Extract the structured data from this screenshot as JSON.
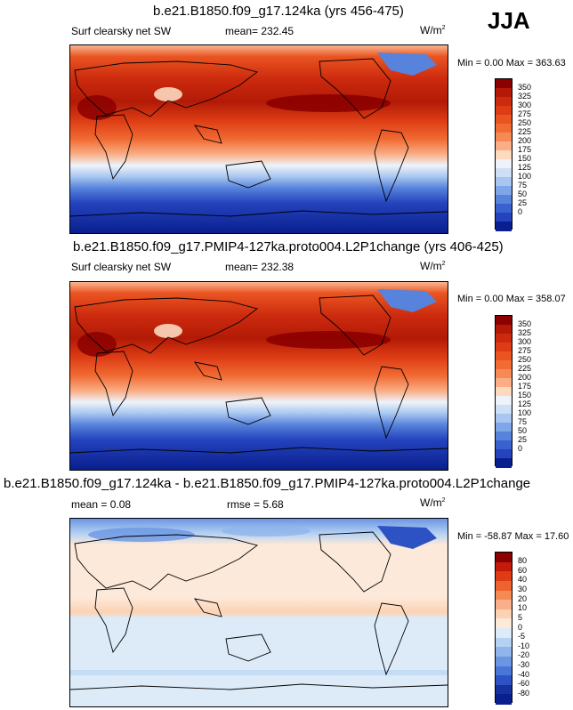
{
  "season": "JJA",
  "unit_label": "W/m",
  "unit_sup": "2",
  "panels": [
    {
      "title": "b.e21.B1850.f09_g17.124ka (yrs 456-475)",
      "variable": "Surf clearsky net SW",
      "mean": "mean= 232.45",
      "minmax": "Min =   0.00 Max = 363.63"
    },
    {
      "title": "b.e21.B1850.f09_g17.PMIP4-127ka.proto004.L2P1change (yrs 406-425)",
      "variable": "Surf clearsky net SW",
      "mean": "mean= 232.38",
      "minmax": "Min =   0.00 Max = 358.07"
    },
    {
      "title": "b.e21.B1850.f09_g17.124ka - b.e21.B1850.f09_g17.PMIP4-127ka.proto004.L2P1change",
      "mean": "mean =   0.08",
      "rmse": "rmse =   5.68",
      "minmax": "Min = -58.87 Max =  17.60"
    }
  ],
  "colorbar_abs": {
    "labels": [
      "350",
      "325",
      "300",
      "275",
      "250",
      "225",
      "200",
      "175",
      "150",
      "125",
      "100",
      "75",
      "50",
      "25",
      "0"
    ],
    "colors": [
      "#8b0000",
      "#b21a06",
      "#cc2a0e",
      "#dd3c14",
      "#ea5421",
      "#f16b33",
      "#f58a55",
      "#f9ae86",
      "#fcd9bf",
      "#eef3fb",
      "#cfe0f6",
      "#a8c6f0",
      "#7ea6e8",
      "#5783dc",
      "#3a62cf",
      "#2443bd",
      "#0a1f8e"
    ]
  },
  "colorbar_diff": {
    "labels": [
      "80",
      "60",
      "40",
      "30",
      "20",
      "10",
      "5",
      "0",
      "-5",
      "-10",
      "-20",
      "-30",
      "-40",
      "-60",
      "-80"
    ],
    "colors": [
      "#8b0000",
      "#c41a0a",
      "#dd3c14",
      "#ee6230",
      "#f58a55",
      "#f9b08a",
      "#fcd2b4",
      "#fde9d9",
      "#ddebf8",
      "#b6d2f3",
      "#8fb5ec",
      "#6a96e3",
      "#4a76d8",
      "#2d52c4",
      "#17319e",
      "#0a1f8e"
    ]
  }
}
